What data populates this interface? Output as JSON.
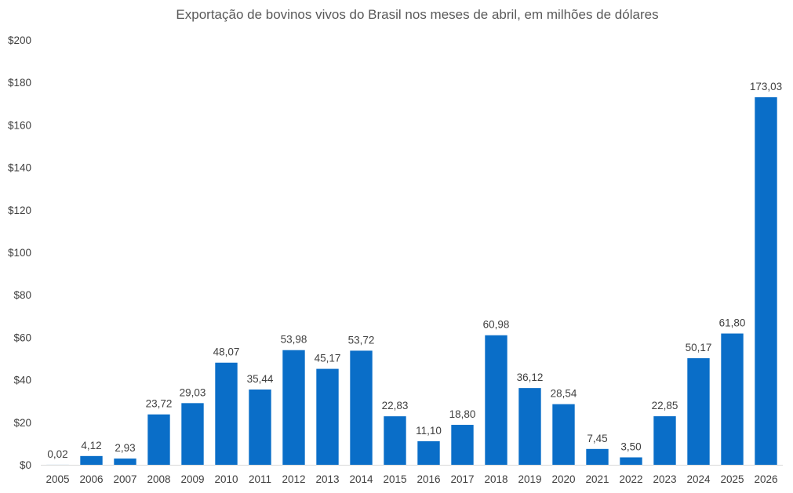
{
  "chart_data": {
    "type": "bar",
    "title": "Exportação de bovinos vivos do Brasil nos meses de abril, em milhões de dólares",
    "xlabel": "",
    "ylabel": "",
    "ylim": [
      0,
      200
    ],
    "grid": false,
    "legend": "none",
    "bar_color": "#0A6EC8",
    "y_ticks": [
      "$0",
      "$20",
      "$40",
      "$60",
      "$80",
      "$100",
      "$120",
      "$140",
      "$160",
      "$180",
      "$200"
    ],
    "y_tick_values": [
      0,
      20,
      40,
      60,
      80,
      100,
      120,
      140,
      160,
      180,
      200
    ],
    "categories": [
      "2005",
      "2006",
      "2007",
      "2008",
      "2009",
      "2010",
      "2011",
      "2012",
      "2013",
      "2014",
      "2015",
      "2016",
      "2017",
      "2018",
      "2019",
      "2020",
      "2021",
      "2022",
      "2023",
      "2024",
      "2025",
      "2026"
    ],
    "values": [
      0.02,
      4.12,
      2.93,
      23.72,
      29.03,
      48.07,
      35.44,
      53.98,
      45.17,
      53.72,
      22.83,
      11.1,
      18.8,
      60.98,
      36.12,
      28.54,
      7.45,
      3.5,
      22.85,
      50.17,
      61.8,
      173.03
    ],
    "data_labels": [
      "0,02",
      "4,12",
      "2,93",
      "23,72",
      "29,03",
      "48,07",
      "35,44",
      "53,98",
      "45,17",
      "53,72",
      "22,83",
      "11,10",
      "18,80",
      "60,98",
      "36,12",
      "28,54",
      "7,45",
      "3,50",
      "22,85",
      "50,17",
      "61,80",
      "173,03"
    ]
  }
}
